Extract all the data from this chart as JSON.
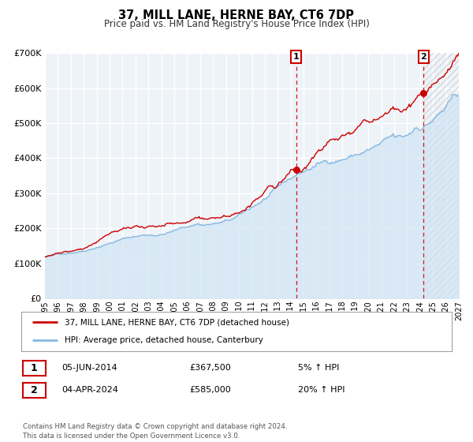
{
  "title": "37, MILL LANE, HERNE BAY, CT6 7DP",
  "subtitle": "Price paid vs. HM Land Registry's House Price Index (HPI)",
  "hpi_legend": "HPI: Average price, detached house, Canterbury",
  "property_legend": "37, MILL LANE, HERNE BAY, CT6 7DP (detached house)",
  "transaction1_date": "05-JUN-2014",
  "transaction1_price": "£367,500",
  "transaction1_hpi": "5% ↑ HPI",
  "transaction1_year": 2014.43,
  "transaction1_value": 367500,
  "transaction2_date": "04-APR-2024",
  "transaction2_price": "£585,000",
  "transaction2_hpi": "20% ↑ HPI",
  "transaction2_year": 2024.27,
  "transaction2_value": 585000,
  "xmin": 1995,
  "xmax": 2027,
  "ymin": 0,
  "ymax": 700000,
  "yticks": [
    0,
    100000,
    200000,
    300000,
    400000,
    500000,
    600000,
    700000
  ],
  "ytick_labels": [
    "£0",
    "£100K",
    "£200K",
    "£300K",
    "£400K",
    "£500K",
    "£600K",
    "£700K"
  ],
  "property_color": "#cc0000",
  "hpi_color": "#88b8e0",
  "hpi_fill_color": "#d0e4f4",
  "background_color": "#eef3f8",
  "plot_bg_color": "#eef3f8",
  "grid_color": "#ffffff",
  "annotation_box_color": "#cc0000",
  "footer_text": "Contains HM Land Registry data © Crown copyright and database right 2024.\nThis data is licensed under the Open Government Licence v3.0."
}
